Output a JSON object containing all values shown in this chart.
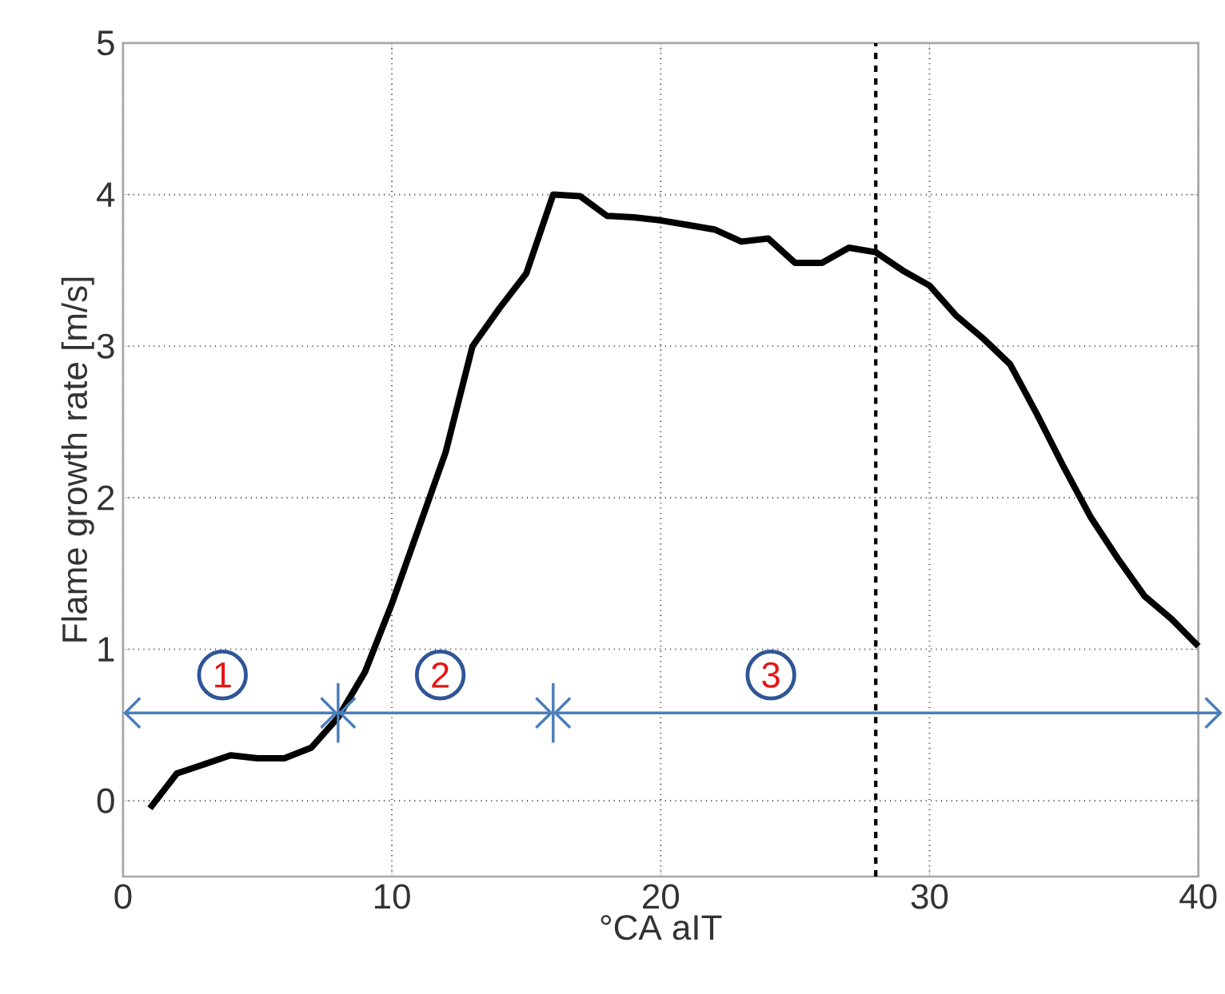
{
  "chart_data": {
    "type": "line",
    "xlabel": "°CA aIT",
    "ylabel": "Flame growth rate [m/s]",
    "x": [
      1,
      2,
      3,
      4,
      5,
      6,
      7,
      8,
      9,
      10,
      11,
      12,
      13,
      14,
      15,
      16,
      17,
      18,
      19,
      20,
      21,
      22,
      23,
      24,
      25,
      26,
      27,
      28,
      29,
      30,
      31,
      32,
      33,
      34,
      35,
      36,
      37,
      38,
      39,
      40
    ],
    "series": [
      {
        "color": "#000000",
        "values": [
          -0.05,
          0.18,
          0.24,
          0.3,
          0.28,
          0.28,
          0.35,
          0.55,
          0.85,
          1.3,
          1.8,
          2.3,
          3.0,
          3.25,
          3.48,
          4.0,
          3.99,
          3.86,
          3.85,
          3.83,
          3.8,
          3.77,
          3.69,
          3.71,
          3.55,
          3.55,
          3.65,
          3.62,
          3.5,
          3.4,
          3.2,
          3.05,
          2.88,
          2.55,
          2.2,
          1.87,
          1.6,
          1.35,
          1.2,
          1.02
        ]
      }
    ],
    "xlim": [
      0,
      40
    ],
    "ylim": [
      -0.5,
      5
    ],
    "xticks": [
      0,
      10,
      20,
      30,
      40
    ],
    "yticks": [
      0,
      1,
      2,
      3,
      4,
      5
    ],
    "grid": true,
    "line_style": "solid",
    "ref_lines": [
      {
        "axis": "x",
        "value": 28,
        "color": "#000000",
        "line_style": "dashed"
      }
    ],
    "annotations": [
      {
        "text": "1",
        "x": 3.7,
        "y": 0.83
      },
      {
        "text": "2",
        "x": 11.8,
        "y": 0.83
      },
      {
        "text": "3",
        "x": 24.1,
        "y": 0.83
      }
    ]
  }
}
